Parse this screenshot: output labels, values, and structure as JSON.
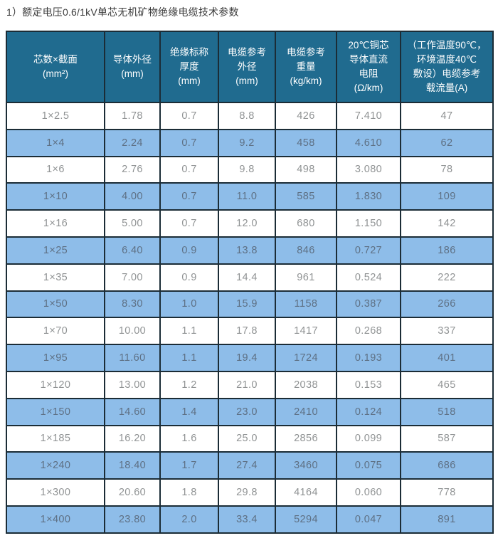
{
  "title": "1）额定电压0.6/1kV单芯无机矿物绝缘电缆技术参数",
  "colors": {
    "header_bg": "#206b8f",
    "header_text": "#ffffff",
    "row_bg": "#ffffff",
    "row_alt_bg": "#8ebde9",
    "border": "#1b2c36",
    "row_text": "#909394",
    "row_alt_text": "#5e7084",
    "title_text": "#3b3b3b"
  },
  "table": {
    "columns": [
      {
        "label": "芯数×截面\n(mm²)"
      },
      {
        "label": "导体外径\n(mm)"
      },
      {
        "label": "绝缘标称\n厚度\n(mm)"
      },
      {
        "label": "电缆参考\n外径\n(mm)"
      },
      {
        "label": "电缆参考\n重量\n(kg/km)"
      },
      {
        "label": "20℃铜芯\n导体直流\n电阻\n(Ω/km)"
      },
      {
        "label": "（工作温度90℃，\n环境温度40℃\n敷设）电缆参考\n载流量(A)"
      }
    ],
    "rows": [
      [
        "1×2.5",
        "1.78",
        "0.7",
        "8.8",
        "426",
        "7.410",
        "47"
      ],
      [
        "1×4",
        "2.24",
        "0.7",
        "9.2",
        "458",
        "4.610",
        "62"
      ],
      [
        "1×6",
        "2.76",
        "0.7",
        "9.8",
        "498",
        "3.080",
        "78"
      ],
      [
        "1×10",
        "4.00",
        "0.7",
        "11.0",
        "585",
        "1.830",
        "109"
      ],
      [
        "1×16",
        "5.00",
        "0.7",
        "12.0",
        "680",
        "1.150",
        "142"
      ],
      [
        "1×25",
        "6.40",
        "0.9",
        "13.8",
        "846",
        "0.727",
        "186"
      ],
      [
        "1×35",
        "7.00",
        "0.9",
        "14.4",
        "961",
        "0.524",
        "222"
      ],
      [
        "1×50",
        "8.30",
        "1.0",
        "15.9",
        "1158",
        "0.387",
        "266"
      ],
      [
        "1×70",
        "10.00",
        "1.1",
        "17.8",
        "1417",
        "0.268",
        "337"
      ],
      [
        "1×95",
        "11.60",
        "1.1",
        "19.4",
        "1724",
        "0.193",
        "401"
      ],
      [
        "1×120",
        "13.00",
        "1.2",
        "21.0",
        "2038",
        "0.153",
        "465"
      ],
      [
        "1×150",
        "14.60",
        "1.4",
        "23.0",
        "2410",
        "0.124",
        "518"
      ],
      [
        "1×185",
        "16.20",
        "1.6",
        "25.0",
        "2856",
        "0.099",
        "587"
      ],
      [
        "1×240",
        "18.40",
        "1.7",
        "27.4",
        "3460",
        "0.075",
        "686"
      ],
      [
        "1×300",
        "20.60",
        "1.8",
        "29.8",
        "4164",
        "0.060",
        "778"
      ],
      [
        "1×400",
        "23.80",
        "2.0",
        "33.4",
        "5294",
        "0.047",
        "891"
      ]
    ]
  }
}
